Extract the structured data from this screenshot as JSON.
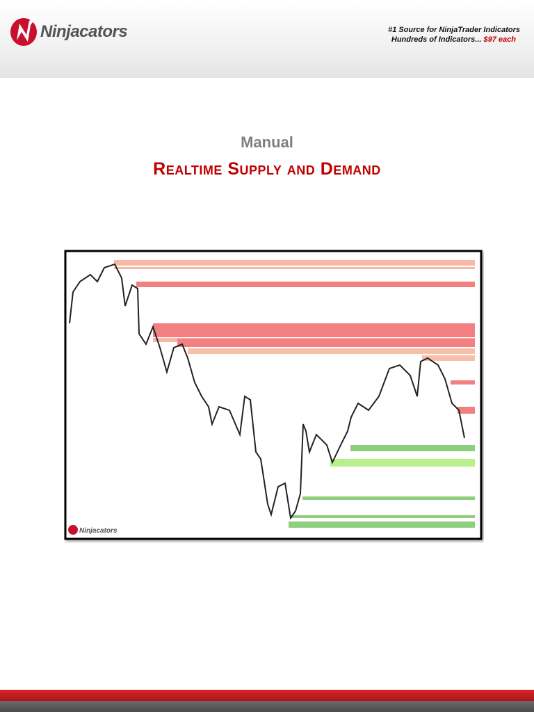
{
  "header": {
    "brand": "Ninjacators",
    "tagline": "#1 Source for NinjaTrader Indicators",
    "offer": "Hundreds of Indicators...",
    "price": "$97 each"
  },
  "manual_label": "Manual",
  "title": "Realtime Supply and Demand",
  "chart_image": {
    "watermark": "Ninjacators"
  }
}
